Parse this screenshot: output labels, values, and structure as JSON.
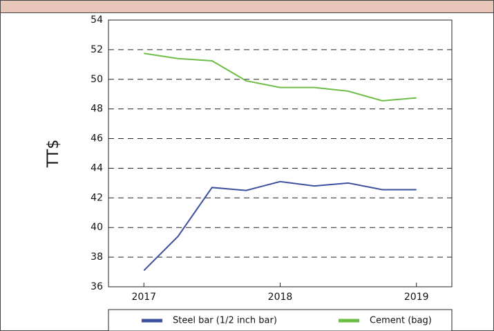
{
  "chart_data": {
    "type": "line",
    "ylabel": "TT$",
    "x": [
      2017,
      2017.25,
      2017.5,
      2017.75,
      2018,
      2018.25,
      2018.5,
      2018.75,
      2019
    ],
    "series": [
      {
        "name": "Steel bar (1/2 inch bar)",
        "color": "#3a4f9e",
        "values": [
          37.1,
          39.4,
          42.7,
          42.5,
          43.1,
          42.8,
          43.0,
          42.55,
          42.55
        ]
      },
      {
        "name": "Cement (bag)",
        "color": "#6cbd45",
        "values": [
          51.75,
          51.4,
          51.25,
          49.9,
          49.45,
          49.45,
          49.2,
          48.55,
          48.75
        ]
      }
    ],
    "xlim": [
      2016.74,
      2019.26
    ],
    "xticks": [
      2017,
      2018,
      2019
    ],
    "ylim": [
      36,
      54
    ],
    "yticks": [
      36,
      38,
      40,
      42,
      44,
      46,
      48,
      50,
      52,
      54
    ],
    "grid": true
  }
}
